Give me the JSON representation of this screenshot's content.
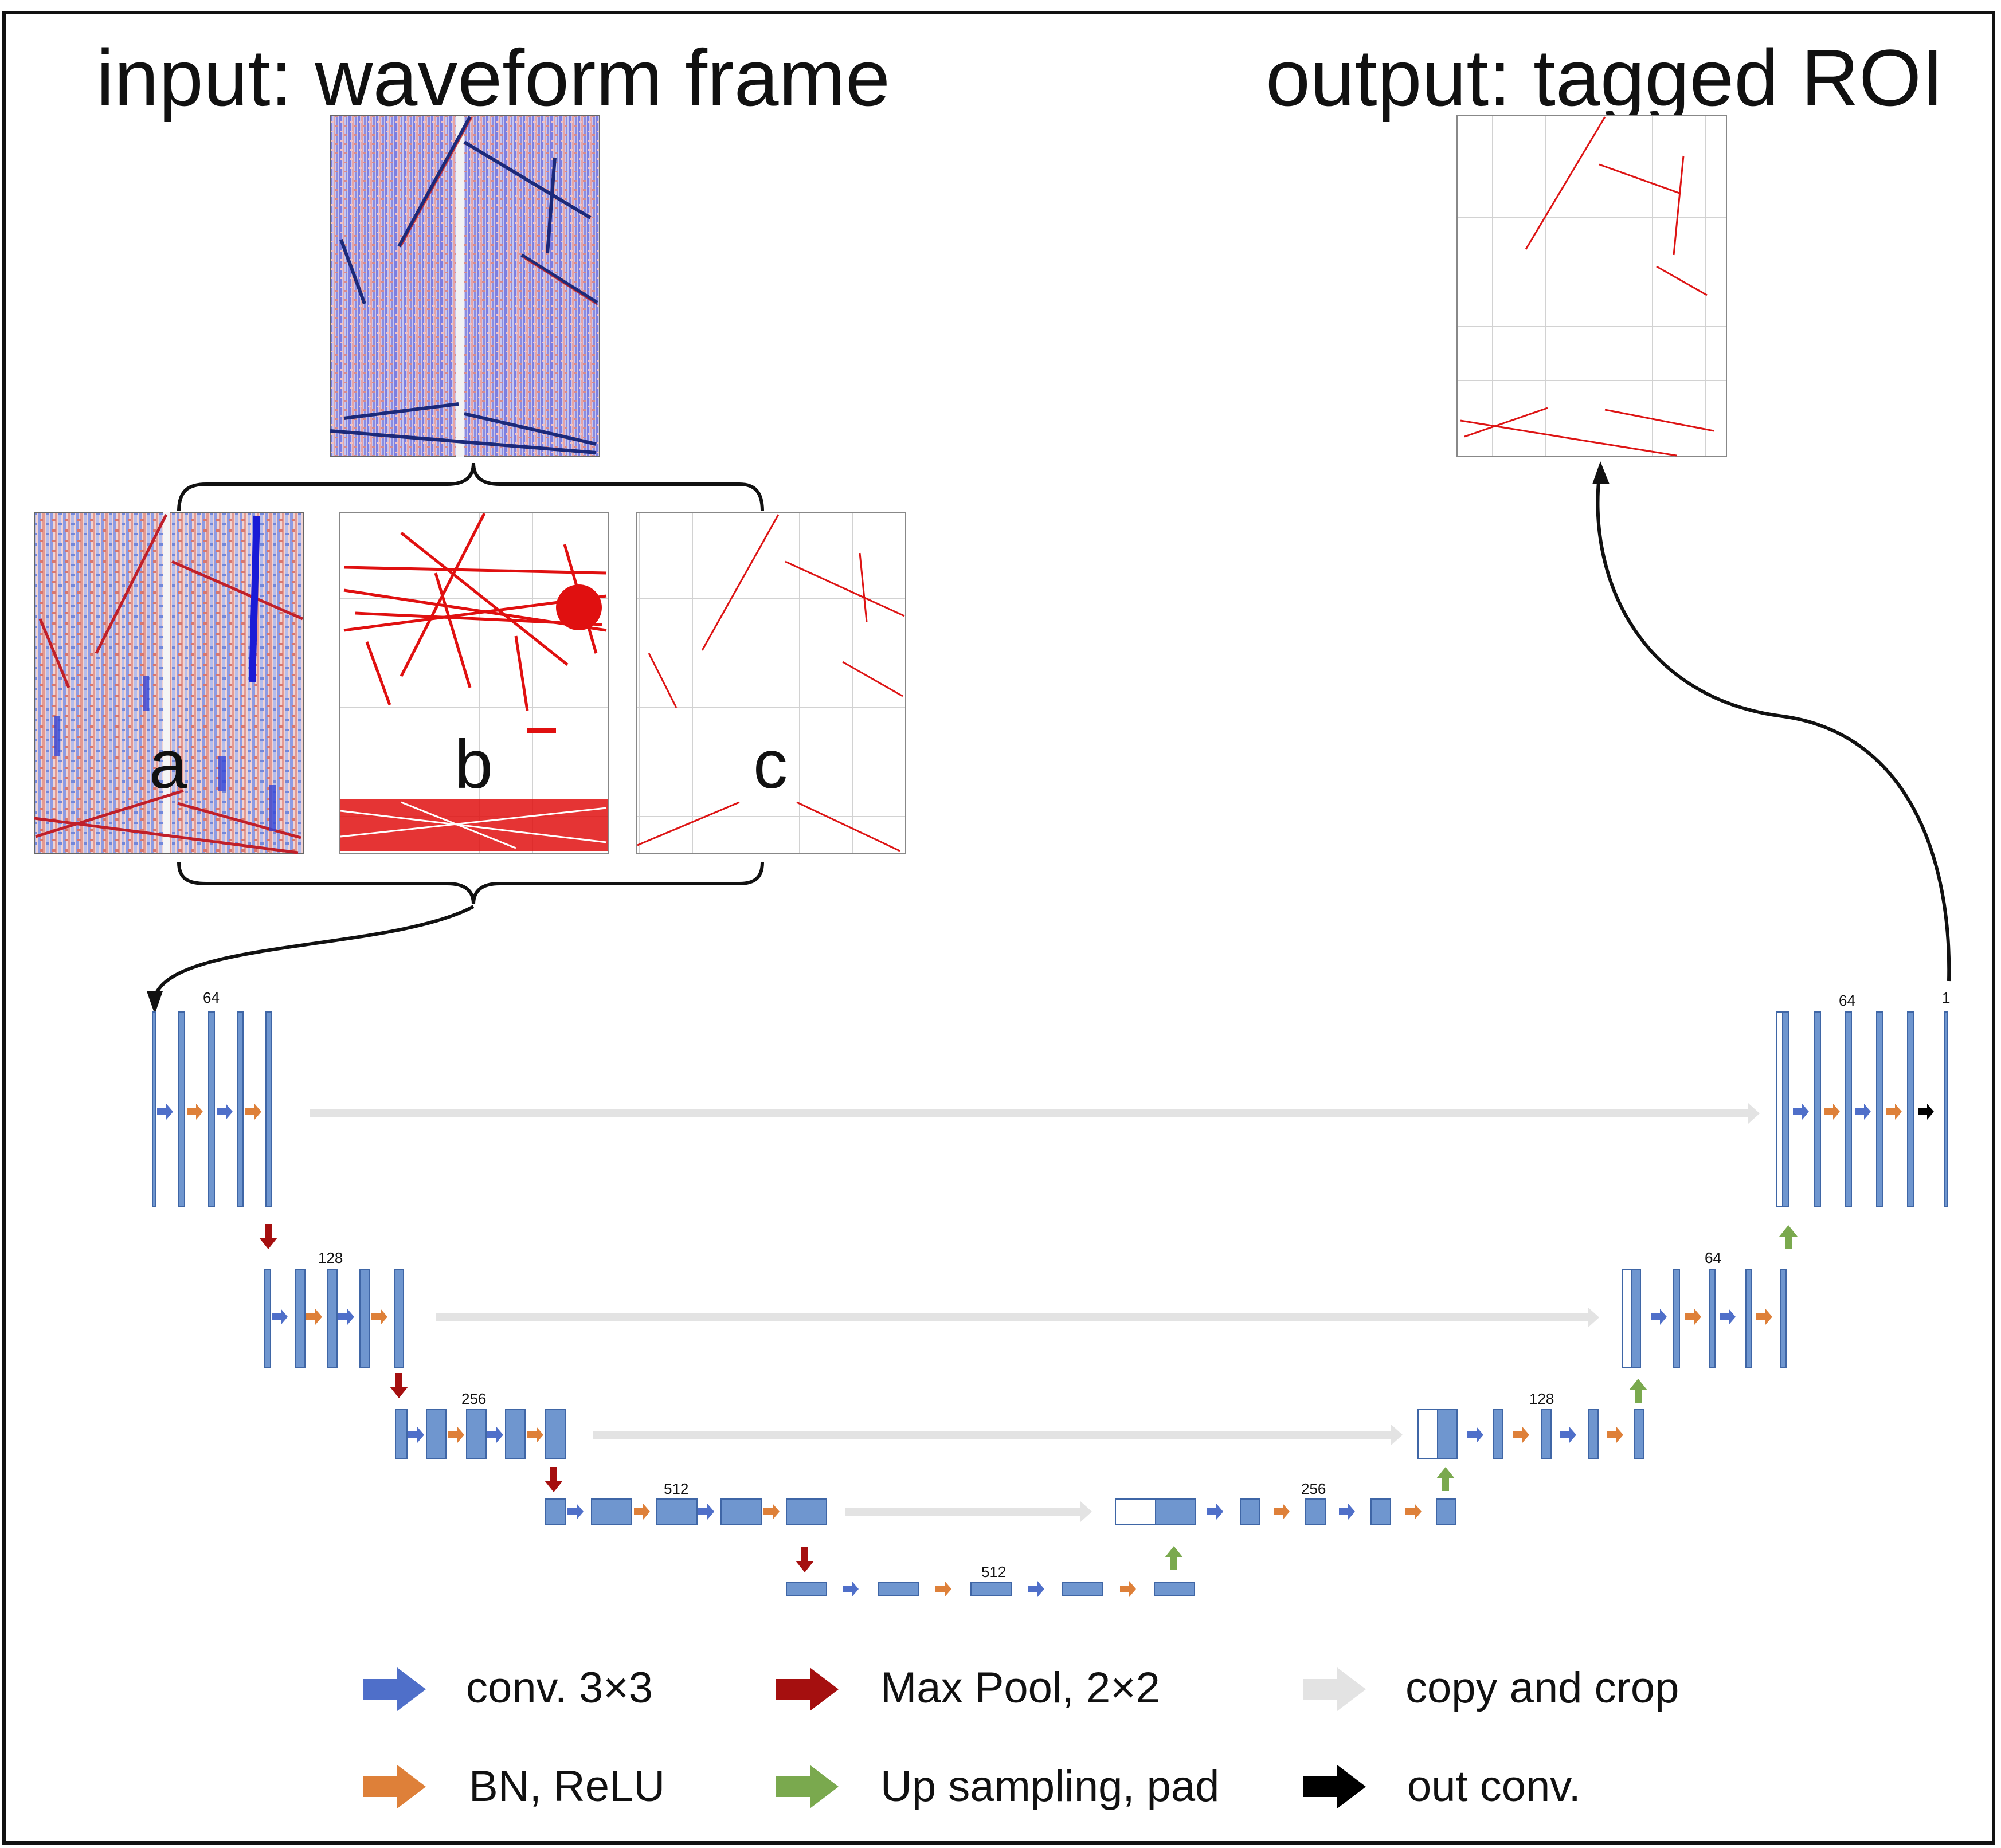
{
  "titles": {
    "input": "input: waveform frame",
    "output": "output: tagged ROI"
  },
  "panels": {
    "a": "a",
    "b": "b",
    "c": "c"
  },
  "channels": {
    "enc1": "64",
    "enc2": "128",
    "enc3": "256",
    "enc4": "512",
    "bottleneck": "512",
    "dec4": "256",
    "dec3": "128",
    "dec2": "64",
    "dec1": "64",
    "out": "1"
  },
  "legend": {
    "conv": "conv. 3×3",
    "bn": "BN, ReLU",
    "pool": "Max Pool, 2×2",
    "up": "Up sampling, pad",
    "copy": "copy and crop",
    "outconv": "out conv."
  },
  "colors": {
    "block": "#6f96cf",
    "block_stroke": "#3f66a6",
    "conv": "#4f6fc9",
    "bn": "#de8039",
    "pool": "#a50f0f",
    "up": "#7aa94e",
    "copy": "#e3e3e3",
    "outconv": "#000000",
    "track_red": "#dd1414"
  }
}
